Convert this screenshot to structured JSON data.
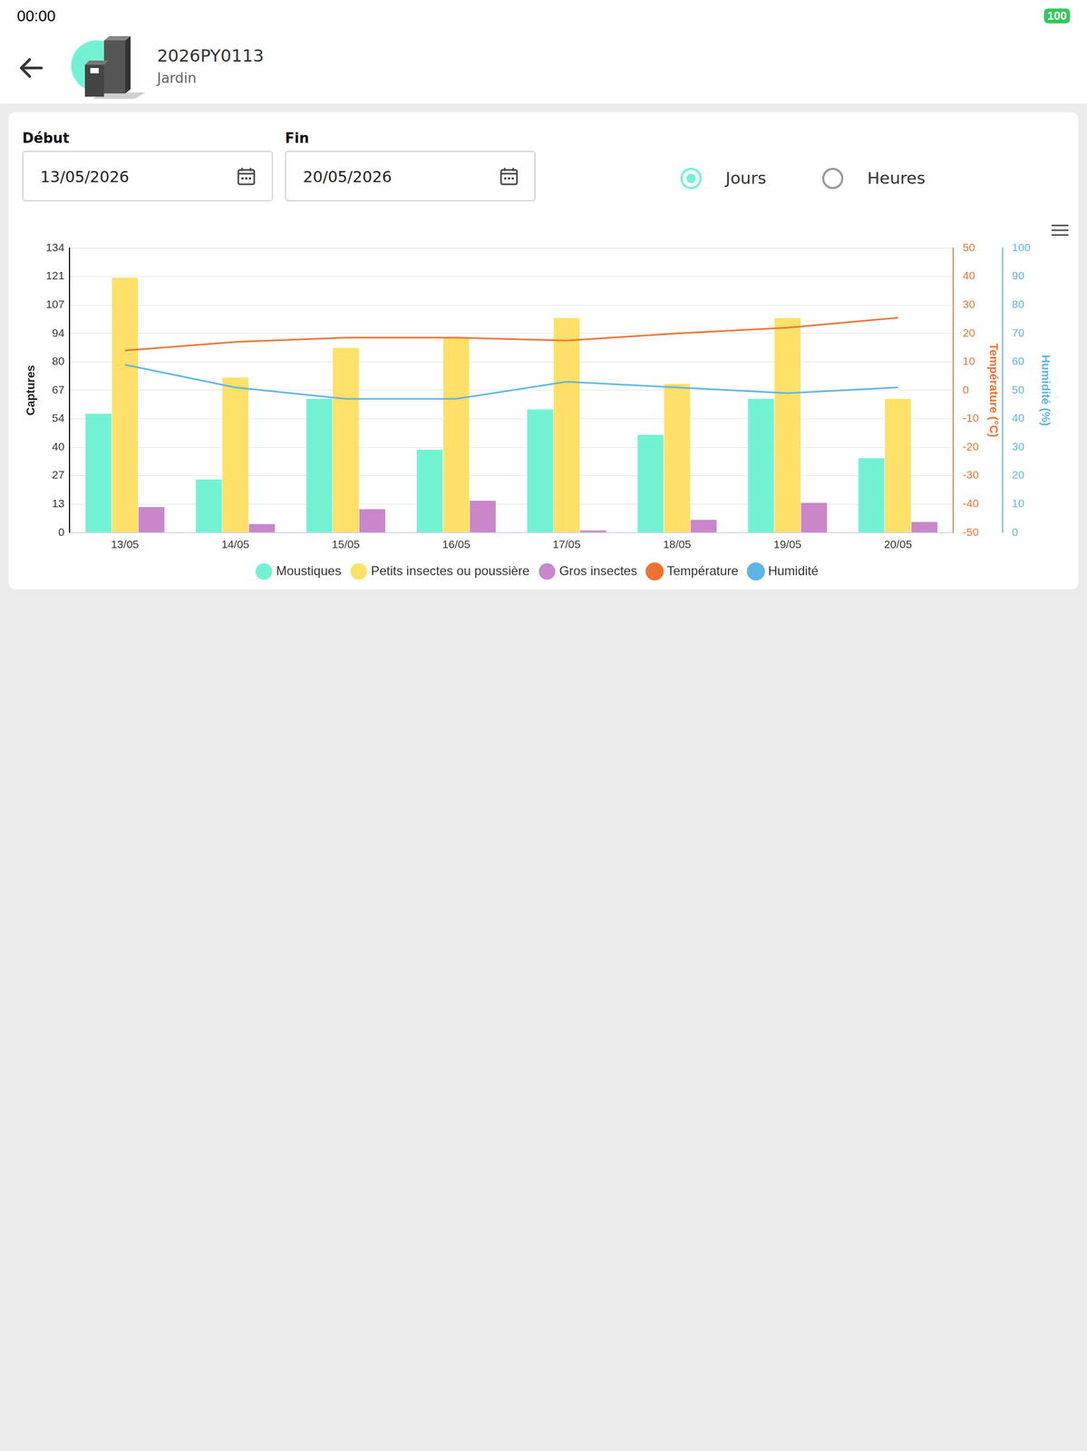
{
  "status_bar": {
    "time": "00:00",
    "battery": "100"
  },
  "header": {
    "title": "2026PY0113",
    "subtitle": "Jardin"
  },
  "filters": {
    "start_label": "Début",
    "start_date": "13/05/2026",
    "end_label": "Fin",
    "end_date": "20/05/2026",
    "granularity": [
      {
        "label": "Jours",
        "selected": true
      },
      {
        "label": "Heures",
        "selected": false
      }
    ]
  },
  "chart_data": {
    "type": "bar",
    "categories": [
      "13/05",
      "14/05",
      "15/05",
      "16/05",
      "17/05",
      "18/05",
      "19/05",
      "20/05"
    ],
    "series": [
      {
        "name": "Moustiques",
        "color": "#73f2d3",
        "values": [
          56,
          25,
          63,
          39,
          58,
          46,
          63,
          35
        ]
      },
      {
        "name": "Petits insectes ou poussière",
        "color": "#ffe068",
        "values": [
          120,
          73,
          87,
          92,
          101,
          70,
          101,
          63
        ]
      },
      {
        "name": "Gros insectes",
        "color": "#c987c9",
        "values": [
          12,
          4,
          11,
          15,
          1,
          6,
          14,
          5
        ]
      },
      {
        "name": "Température",
        "color": "#f07232",
        "type": "line",
        "axis": "y2",
        "values": [
          14,
          17,
          18.5,
          18.5,
          17.5,
          20,
          22,
          25.5
        ]
      },
      {
        "name": "Humidité",
        "color": "#5db5e6",
        "type": "line",
        "axis": "y3",
        "values": [
          59,
          51,
          47,
          47,
          53,
          51,
          49,
          51
        ]
      }
    ],
    "y_label": "Captures",
    "y2_label": "Température (°C)",
    "y3_label": "Humidité (%)",
    "ylim": [
      0,
      134
    ],
    "yticks": [
      0,
      {
        "value": 13.4,
        "label": "13"
      },
      {
        "value": 26.8,
        "label": "27"
      },
      {
        "value": 40.2,
        "label": "40"
      },
      {
        "value": 53.6,
        "label": "54"
      },
      67,
      {
        "value": 80.4,
        "label": "80"
      },
      {
        "value": 93.8,
        "label": "94"
      },
      {
        "value": 107.2,
        "label": "107"
      },
      {
        "value": 120.6,
        "label": "121"
      },
      134
    ],
    "y2lim": [
      -50,
      50
    ],
    "y2ticks": [
      -50,
      -40,
      -30,
      -20,
      -10,
      0,
      10,
      20,
      30,
      40,
      50
    ],
    "y3lim": [
      0,
      100
    ],
    "y3ticks": [
      0,
      10,
      20,
      30,
      40,
      50,
      60,
      70,
      80,
      90,
      100
    ],
    "grid": true,
    "legend": "bottom"
  }
}
